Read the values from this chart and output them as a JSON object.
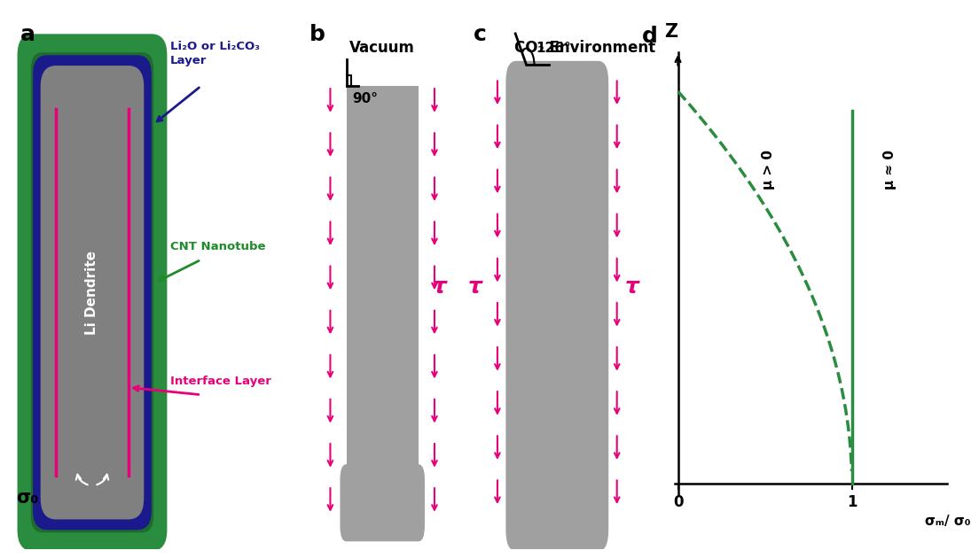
{
  "bg_color": "#ffffff",
  "panel_a": {
    "label": "a",
    "outer_tube_color": "#2a8c3f",
    "outer_tube_dark": "#1e6b2e",
    "inner_layer_color": "#1a1a8c",
    "dendrite_color": "#808080",
    "interface_line_color": "#e8007a",
    "arrow_blue_color": "#1a1a8c",
    "arrow_green_color": "#1e8c2a",
    "arrow_pink_color": "#e8007a",
    "text_li2o": "Li₂O or Li₂CO₃\nLayer",
    "text_cnt": "CNT Nanotube",
    "text_interface": "Interface Layer",
    "text_dendrite": "Li Dendrite",
    "text_sigma": "σ₀"
  },
  "panel_b": {
    "label": "b",
    "title": "Vacuum",
    "rect_color": "#a0a0a0",
    "arrow_color": "#e8007a",
    "angle_text": "90°",
    "tau_text": "τ",
    "tau_color": "#e8007a"
  },
  "panel_c": {
    "label": "c",
    "title": "CO₂ Environment",
    "rect_color": "#a0a0a0",
    "arrow_color": "#e8007a",
    "angle_text": "126°",
    "tau_text": "τ",
    "tau_color": "#e8007a"
  },
  "panel_d": {
    "label": "d",
    "xlabel": "σₘ/ σ₀",
    "ylabel": "Z",
    "curve_color": "#2a8c3f",
    "line_color": "#2a8c3f",
    "text_mu_gt0": "μ > 0",
    "text_mu_eq0": "μ ≈ 0",
    "tick_0": "0",
    "tick_1": "1"
  }
}
